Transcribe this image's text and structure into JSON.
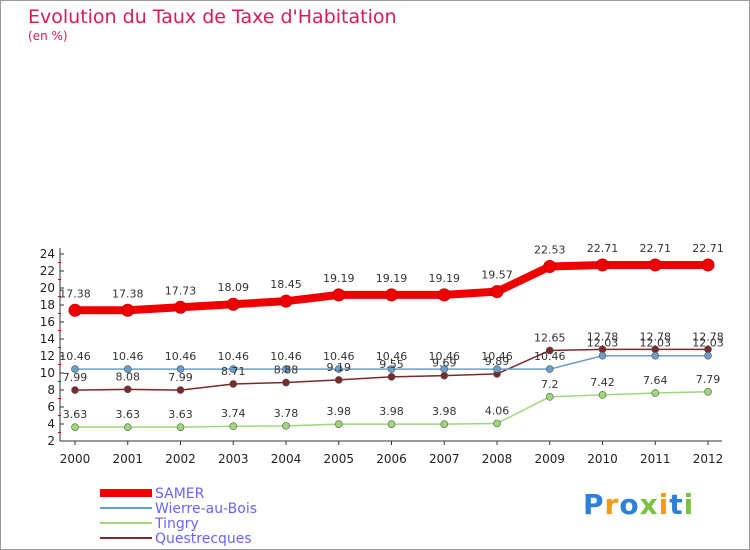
{
  "title": "Evolution du Taux de Taxe d'Habitation",
  "unit_label": "(en %)",
  "logo": {
    "text": "Proxiti",
    "letters": [
      "P",
      "r",
      "o",
      "x",
      "i",
      "t",
      "i"
    ],
    "colors": [
      "#2f7fd6",
      "#f29b1b",
      "#2f7fd6",
      "#7cc242",
      "#f29b1b",
      "#2f7fd6",
      "#7cc242"
    ]
  },
  "chart_data": {
    "type": "line",
    "title": "Evolution du Taux de Taxe d'Habitation",
    "ylabel": "(en %)",
    "xlabel": "",
    "ylim": [
      2,
      24
    ],
    "yticks": [
      2,
      4,
      6,
      8,
      10,
      12,
      14,
      16,
      18,
      20,
      22,
      24
    ],
    "x": [
      "2000",
      "2001",
      "2002",
      "2003",
      "2004",
      "2005",
      "2006",
      "2007",
      "2008",
      "2009",
      "2010",
      "2011",
      "2012"
    ],
    "grid": false,
    "legend_position": "bottom-left",
    "series": [
      {
        "name": "SAMER",
        "color": "#ee0000",
        "text_color": "#6666ff",
        "width": 8,
        "values": [
          17.38,
          17.38,
          17.73,
          18.09,
          18.45,
          19.19,
          19.19,
          19.19,
          19.57,
          22.53,
          22.71,
          22.71,
          22.71
        ],
        "labels": [
          "17.38",
          "17.38",
          "17.73",
          "18.09",
          "18.45",
          "19.19",
          "19.19",
          "19.19",
          "19.57",
          "22.53",
          "22.71",
          "22.71",
          "22.71"
        ]
      },
      {
        "name": "Wierre-au-Bois",
        "color": "#6b9ec9",
        "text_color": "#6666ff",
        "width": 1.5,
        "values": [
          10.46,
          10.46,
          10.46,
          10.46,
          10.46,
          10.46,
          10.46,
          10.46,
          10.46,
          10.46,
          12.03,
          12.03,
          12.03
        ],
        "labels": [
          "10.46",
          "10.46",
          "10.46",
          "10.46",
          "10.46",
          "10.46",
          "10.46",
          "10.46",
          "10.46",
          "10.46",
          "12.03",
          "12.03",
          "12.03"
        ]
      },
      {
        "name": "Tingry",
        "color": "#9fd87a",
        "text_color": "#6666ff",
        "width": 1.5,
        "values": [
          3.63,
          3.63,
          3.63,
          3.74,
          3.78,
          3.98,
          3.98,
          3.98,
          4.06,
          7.2,
          7.42,
          7.64,
          7.79
        ],
        "labels": [
          "3.63",
          "3.63",
          "3.63",
          "3.74",
          "3.78",
          "3.98",
          "3.98",
          "3.98",
          "4.06",
          "7.2",
          "7.42",
          "7.64",
          "7.79"
        ]
      },
      {
        "name": "Questrecques",
        "color": "#7a2a2a",
        "text_color": "#6666ff",
        "width": 1.5,
        "values": [
          7.99,
          8.08,
          7.99,
          8.71,
          8.88,
          9.19,
          9.55,
          9.69,
          9.89,
          12.65,
          12.78,
          12.78,
          12.78
        ],
        "labels": [
          "7.99",
          "8.08",
          "7.99",
          "8.71",
          "8.88",
          "9.19",
          "9.55",
          "9.69",
          "9.89",
          "12.65",
          "12.78",
          "12.78",
          "12.78"
        ]
      }
    ]
  }
}
